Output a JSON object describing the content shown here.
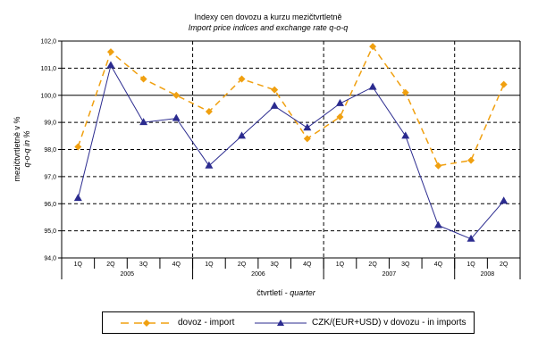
{
  "chart_data": {
    "type": "line",
    "title": "Indexy cen dovozu a kurzu mezičtvrtletně",
    "subtitle": "Import price indices and exchange rate q-o-q",
    "xlabel": "čtvrtletí - quarter",
    "xlabel_main": "čtvrtletí",
    "xlabel_en": "quarter",
    "ylabel": "mezičtvrtletně v % / q-o-q in %",
    "ylabel_main": "mezičtvrtletně v %",
    "ylabel_en": "q-o-q in %",
    "ylim": [
      94.0,
      102.0
    ],
    "ytick_step": 1.0,
    "yticks": [
      "94,0",
      "95,0",
      "96,0",
      "97,0",
      "98,0",
      "99,0",
      "100,0",
      "101,0",
      "102,0"
    ],
    "grid": true,
    "legend_position": "bottom",
    "categories": [
      "1Q",
      "2Q",
      "3Q",
      "4Q",
      "1Q",
      "2Q",
      "3Q",
      "4Q",
      "1Q",
      "2Q",
      "3Q",
      "4Q",
      "1Q",
      "2Q"
    ],
    "years": [
      {
        "label": "2005",
        "quarters": 4
      },
      {
        "label": "2006",
        "quarters": 4
      },
      {
        "label": "2007",
        "quarters": 4
      },
      {
        "label": "2008",
        "quarters": 2
      }
    ],
    "series": [
      {
        "name": "dovoz - import",
        "color": "#F0A010",
        "style": "dashed",
        "marker": "diamond",
        "values": [
          98.1,
          101.6,
          100.6,
          100.0,
          99.4,
          100.6,
          100.2,
          98.4,
          99.2,
          101.8,
          100.1,
          97.4,
          97.6,
          100.4
        ]
      },
      {
        "name": "CZK/(EUR+USD) v dovozu - in imports",
        "color": "#2B2B8F",
        "style": "solid",
        "marker": "triangle",
        "values": [
          96.2,
          101.1,
          99.0,
          99.15,
          97.4,
          98.5,
          99.6,
          98.8,
          99.7,
          100.3,
          98.5,
          95.2,
          94.7,
          96.1
        ]
      }
    ]
  }
}
